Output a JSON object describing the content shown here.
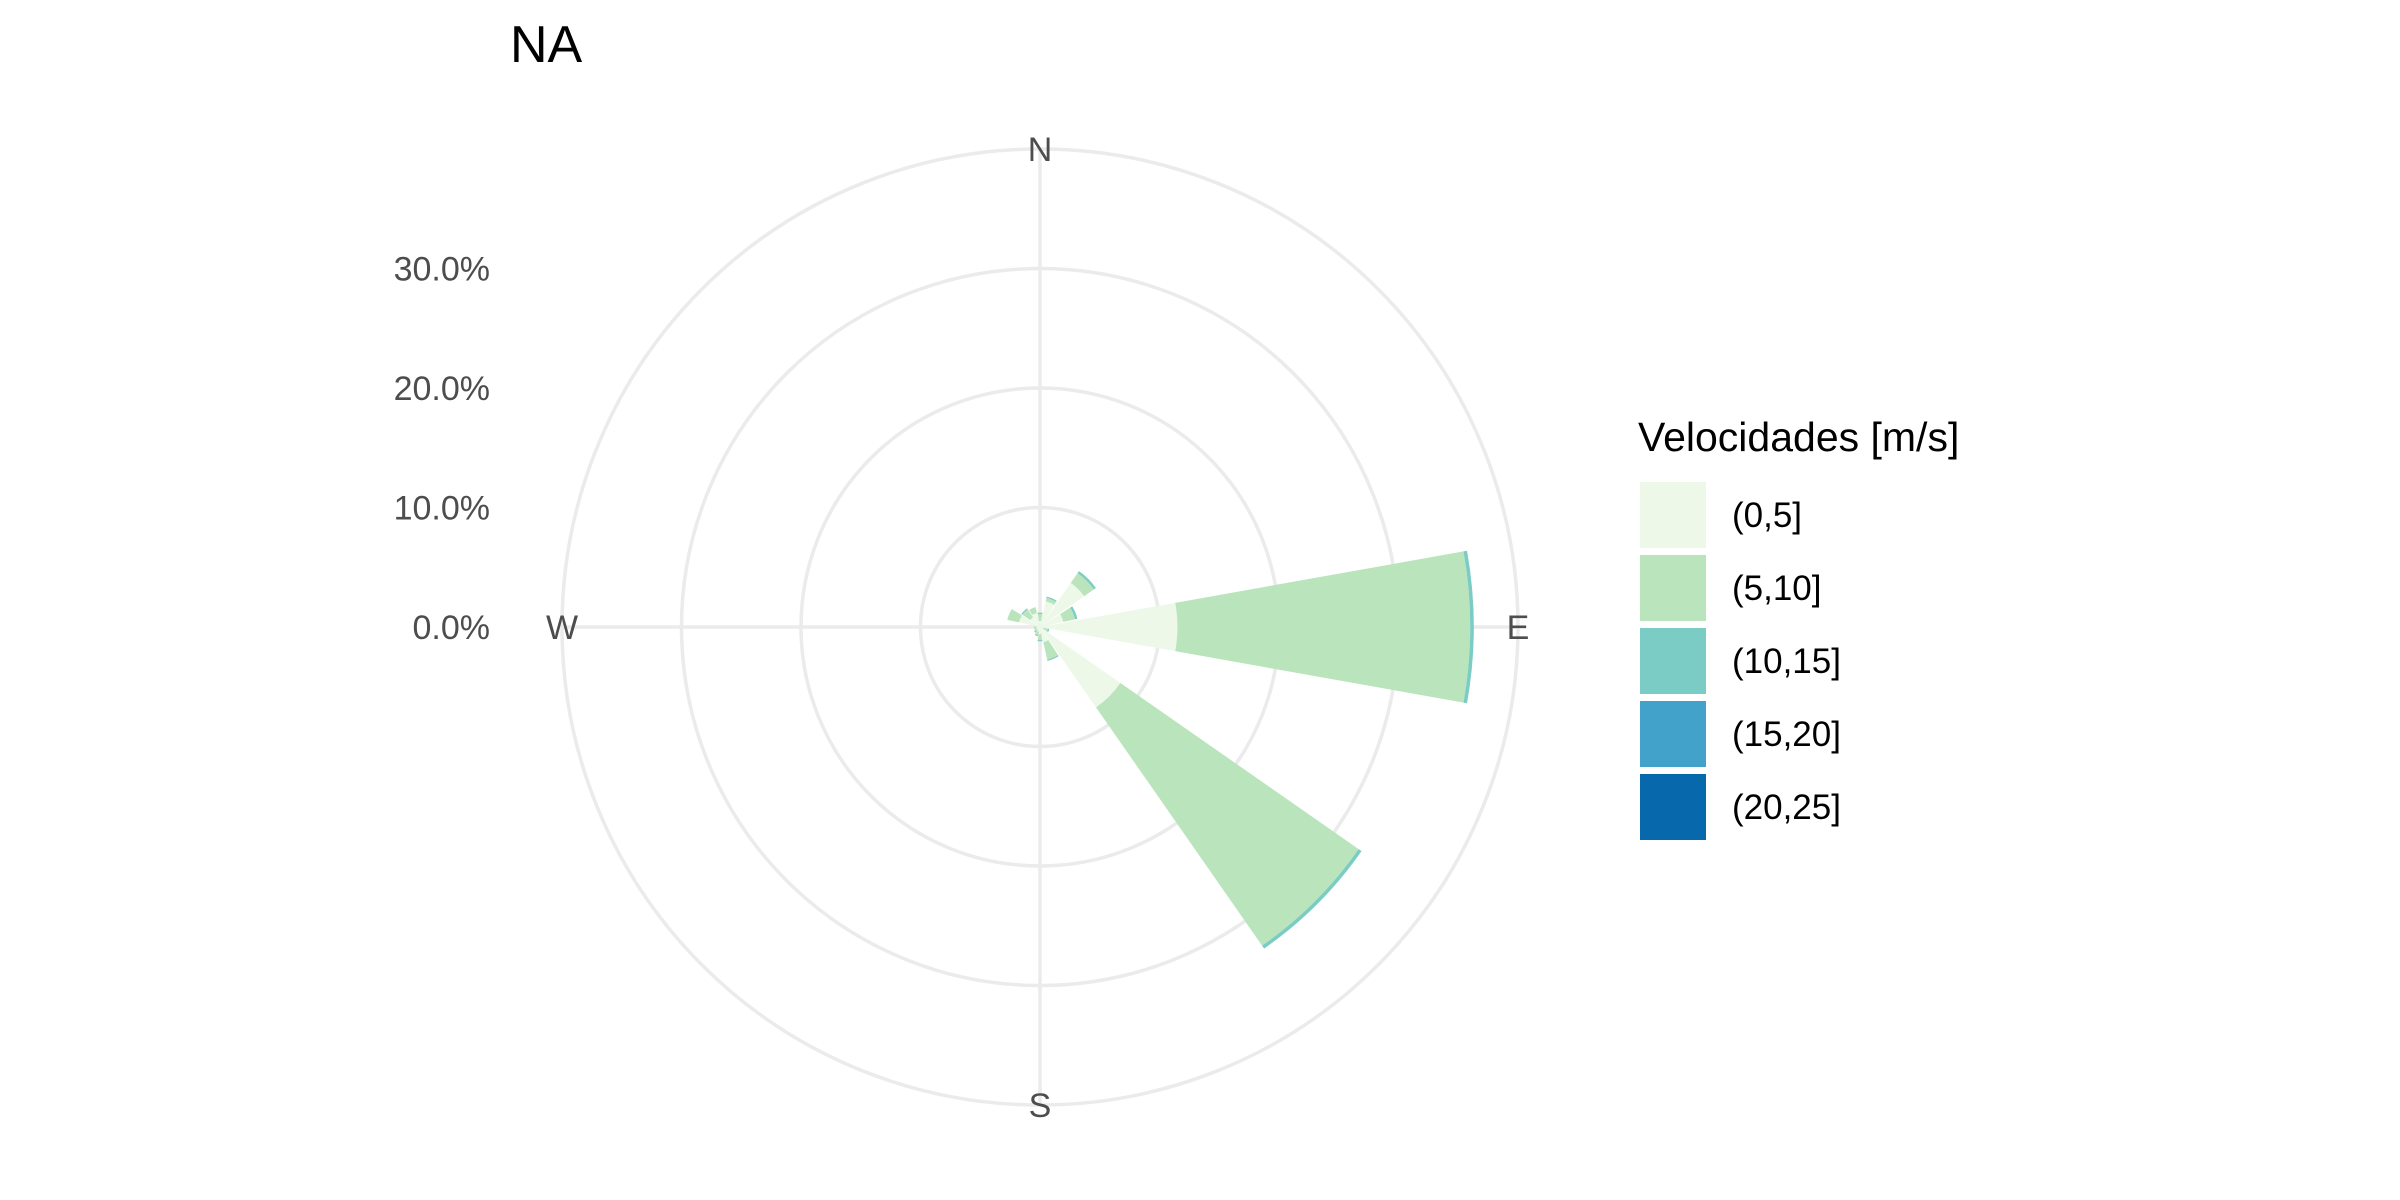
{
  "chart_data": {
    "type": "polar-bar",
    "title": "NA",
    "directions": [
      "N",
      "E",
      "S",
      "W"
    ],
    "radial_ticks": [
      "0.0%",
      "10.0%",
      "20.0%",
      "30.0%"
    ],
    "radial_tick_values": [
      0,
      10,
      20,
      30
    ],
    "rmax": 40,
    "grid": true,
    "legend": {
      "title": "Velocidades [m/s]",
      "placement": "right",
      "items": [
        {
          "label": "(0,5]",
          "color": "#edf8e9"
        },
        {
          "label": "(5,10]",
          "color": "#bae4bc"
        },
        {
          "label": "(10,15]",
          "color": "#7bccc4"
        },
        {
          "label": "(15,20]",
          "color": "#43a2ca"
        },
        {
          "label": "(20,25]",
          "color": "#0868ac"
        }
      ]
    },
    "sector_width_deg": 22.5,
    "series": [
      {
        "direction_deg": 0,
        "stack": [
          0.5,
          0.6,
          0.1
        ]
      },
      {
        "direction_deg": 22.5,
        "stack": [
          2.2,
          0.3,
          0.1
        ]
      },
      {
        "direction_deg": 45,
        "stack": [
          4.5,
          1.0,
          0.2
        ]
      },
      {
        "direction_deg": 67.5,
        "stack": [
          2.0,
          1.0,
          0.2
        ]
      },
      {
        "direction_deg": 90,
        "stack": [
          11.5,
          24.5,
          0.3
        ]
      },
      {
        "direction_deg": 112.5,
        "stack": [
          0.3,
          0.4,
          0.1
        ]
      },
      {
        "direction_deg": 135,
        "stack": [
          8.2,
          24.3,
          0.3
        ]
      },
      {
        "direction_deg": 157.5,
        "stack": [
          1.3,
          1.5,
          0.1
        ]
      },
      {
        "direction_deg": 180,
        "stack": [
          0.6,
          0.5,
          0.1
        ]
      },
      {
        "direction_deg": 202.5,
        "stack": [
          0.4,
          0.3,
          0.1
        ]
      },
      {
        "direction_deg": 225,
        "stack": [
          0.3,
          0.2,
          0.1
        ]
      },
      {
        "direction_deg": 247.5,
        "stack": [
          0.3,
          0.2
        ]
      },
      {
        "direction_deg": 270,
        "stack": [
          0.3,
          0.2
        ]
      },
      {
        "direction_deg": 292.5,
        "stack": [
          1.8,
          1.0
        ]
      },
      {
        "direction_deg": 315,
        "stack": [
          1.0,
          0.8,
          0.1
        ]
      },
      {
        "direction_deg": 337.5,
        "stack": [
          1.2,
          0.5
        ]
      }
    ]
  }
}
